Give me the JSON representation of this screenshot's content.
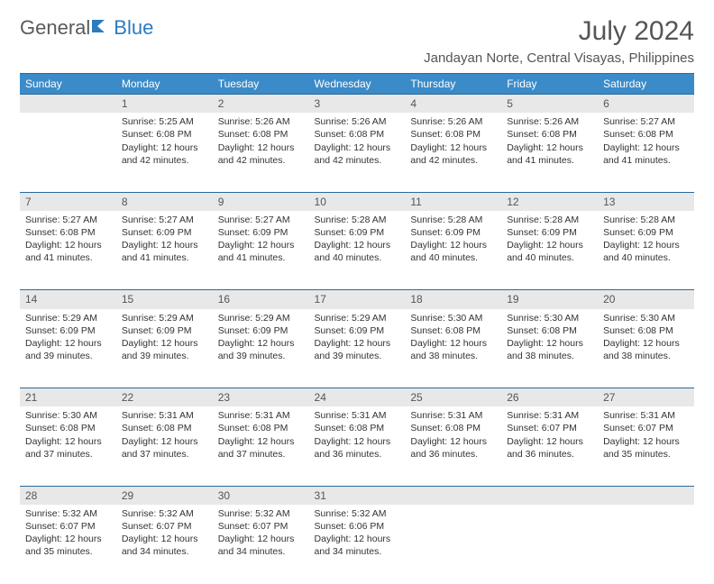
{
  "brand": {
    "part1": "General",
    "part2": "Blue"
  },
  "title": "July 2024",
  "location": "Jandayan Norte, Central Visayas, Philippines",
  "colors": {
    "header_bg": "#3b8bc9",
    "header_border": "#2b6a9c",
    "daynum_bg": "#e8e8e8",
    "text": "#333333",
    "muted": "#555555",
    "brand_blue": "#2b7bbf"
  },
  "weekdays": [
    "Sunday",
    "Monday",
    "Tuesday",
    "Wednesday",
    "Thursday",
    "Friday",
    "Saturday"
  ],
  "weeks": [
    {
      "nums": [
        "",
        "1",
        "2",
        "3",
        "4",
        "5",
        "6"
      ],
      "cells": [
        [],
        [
          "Sunrise: 5:25 AM",
          "Sunset: 6:08 PM",
          "Daylight: 12 hours",
          "and 42 minutes."
        ],
        [
          "Sunrise: 5:26 AM",
          "Sunset: 6:08 PM",
          "Daylight: 12 hours",
          "and 42 minutes."
        ],
        [
          "Sunrise: 5:26 AM",
          "Sunset: 6:08 PM",
          "Daylight: 12 hours",
          "and 42 minutes."
        ],
        [
          "Sunrise: 5:26 AM",
          "Sunset: 6:08 PM",
          "Daylight: 12 hours",
          "and 42 minutes."
        ],
        [
          "Sunrise: 5:26 AM",
          "Sunset: 6:08 PM",
          "Daylight: 12 hours",
          "and 41 minutes."
        ],
        [
          "Sunrise: 5:27 AM",
          "Sunset: 6:08 PM",
          "Daylight: 12 hours",
          "and 41 minutes."
        ]
      ]
    },
    {
      "nums": [
        "7",
        "8",
        "9",
        "10",
        "11",
        "12",
        "13"
      ],
      "cells": [
        [
          "Sunrise: 5:27 AM",
          "Sunset: 6:08 PM",
          "Daylight: 12 hours",
          "and 41 minutes."
        ],
        [
          "Sunrise: 5:27 AM",
          "Sunset: 6:09 PM",
          "Daylight: 12 hours",
          "and 41 minutes."
        ],
        [
          "Sunrise: 5:27 AM",
          "Sunset: 6:09 PM",
          "Daylight: 12 hours",
          "and 41 minutes."
        ],
        [
          "Sunrise: 5:28 AM",
          "Sunset: 6:09 PM",
          "Daylight: 12 hours",
          "and 40 minutes."
        ],
        [
          "Sunrise: 5:28 AM",
          "Sunset: 6:09 PM",
          "Daylight: 12 hours",
          "and 40 minutes."
        ],
        [
          "Sunrise: 5:28 AM",
          "Sunset: 6:09 PM",
          "Daylight: 12 hours",
          "and 40 minutes."
        ],
        [
          "Sunrise: 5:28 AM",
          "Sunset: 6:09 PM",
          "Daylight: 12 hours",
          "and 40 minutes."
        ]
      ]
    },
    {
      "nums": [
        "14",
        "15",
        "16",
        "17",
        "18",
        "19",
        "20"
      ],
      "cells": [
        [
          "Sunrise: 5:29 AM",
          "Sunset: 6:09 PM",
          "Daylight: 12 hours",
          "and 39 minutes."
        ],
        [
          "Sunrise: 5:29 AM",
          "Sunset: 6:09 PM",
          "Daylight: 12 hours",
          "and 39 minutes."
        ],
        [
          "Sunrise: 5:29 AM",
          "Sunset: 6:09 PM",
          "Daylight: 12 hours",
          "and 39 minutes."
        ],
        [
          "Sunrise: 5:29 AM",
          "Sunset: 6:09 PM",
          "Daylight: 12 hours",
          "and 39 minutes."
        ],
        [
          "Sunrise: 5:30 AM",
          "Sunset: 6:08 PM",
          "Daylight: 12 hours",
          "and 38 minutes."
        ],
        [
          "Sunrise: 5:30 AM",
          "Sunset: 6:08 PM",
          "Daylight: 12 hours",
          "and 38 minutes."
        ],
        [
          "Sunrise: 5:30 AM",
          "Sunset: 6:08 PM",
          "Daylight: 12 hours",
          "and 38 minutes."
        ]
      ]
    },
    {
      "nums": [
        "21",
        "22",
        "23",
        "24",
        "25",
        "26",
        "27"
      ],
      "cells": [
        [
          "Sunrise: 5:30 AM",
          "Sunset: 6:08 PM",
          "Daylight: 12 hours",
          "and 37 minutes."
        ],
        [
          "Sunrise: 5:31 AM",
          "Sunset: 6:08 PM",
          "Daylight: 12 hours",
          "and 37 minutes."
        ],
        [
          "Sunrise: 5:31 AM",
          "Sunset: 6:08 PM",
          "Daylight: 12 hours",
          "and 37 minutes."
        ],
        [
          "Sunrise: 5:31 AM",
          "Sunset: 6:08 PM",
          "Daylight: 12 hours",
          "and 36 minutes."
        ],
        [
          "Sunrise: 5:31 AM",
          "Sunset: 6:08 PM",
          "Daylight: 12 hours",
          "and 36 minutes."
        ],
        [
          "Sunrise: 5:31 AM",
          "Sunset: 6:07 PM",
          "Daylight: 12 hours",
          "and 36 minutes."
        ],
        [
          "Sunrise: 5:31 AM",
          "Sunset: 6:07 PM",
          "Daylight: 12 hours",
          "and 35 minutes."
        ]
      ]
    },
    {
      "nums": [
        "28",
        "29",
        "30",
        "31",
        "",
        "",
        ""
      ],
      "cells": [
        [
          "Sunrise: 5:32 AM",
          "Sunset: 6:07 PM",
          "Daylight: 12 hours",
          "and 35 minutes."
        ],
        [
          "Sunrise: 5:32 AM",
          "Sunset: 6:07 PM",
          "Daylight: 12 hours",
          "and 34 minutes."
        ],
        [
          "Sunrise: 5:32 AM",
          "Sunset: 6:07 PM",
          "Daylight: 12 hours",
          "and 34 minutes."
        ],
        [
          "Sunrise: 5:32 AM",
          "Sunset: 6:06 PM",
          "Daylight: 12 hours",
          "and 34 minutes."
        ],
        [],
        [],
        []
      ]
    }
  ]
}
